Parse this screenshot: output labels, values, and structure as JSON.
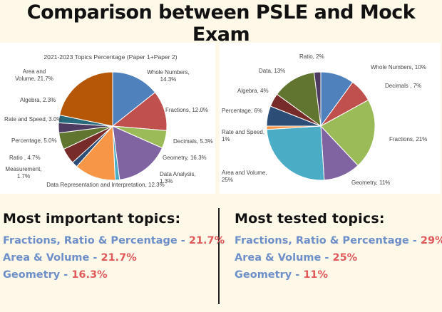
{
  "page": {
    "title": "Comparison between PSLE and Mock Exam"
  },
  "chart_data": [
    {
      "type": "pie",
      "title": "2021-2023 Topics Percentage (Paper 1+Paper 2)",
      "slices": [
        {
          "label": [
            "Whole Numbers,",
            "14.3%"
          ],
          "value": 14.3,
          "color": "#4f81bd"
        },
        {
          "label": [
            "Fractions, 12.0%"
          ],
          "value": 12.0,
          "color": "#c0504d"
        },
        {
          "label": [
            "Decimals, 5.3%"
          ],
          "value": 5.3,
          "color": "#9bbb59"
        },
        {
          "label": [
            "Geometry, 16.3%"
          ],
          "value": 16.3,
          "color": "#8064a2"
        },
        {
          "label": [
            "Data Analysis,",
            "1.3%"
          ],
          "value": 1.3,
          "color": "#4bacc6"
        },
        {
          "label": [
            "Data Representation and Interpretation, 12.3%"
          ],
          "value": 12.3,
          "color": "#f79646"
        },
        {
          "label": [
            "Measurement,",
            "1.7%"
          ],
          "value": 1.7,
          "color": "#2c4d75"
        },
        {
          "label": [
            "Ratio , 4.7%"
          ],
          "value": 4.7,
          "color": "#772c2a"
        },
        {
          "label": [
            "Percentage, 5.0%"
          ],
          "value": 5.0,
          "color": "#5f7530"
        },
        {
          "label": [
            "Rate and Speed, 3.0%"
          ],
          "value": 3.0,
          "color": "#4d3b62"
        },
        {
          "label": [
            "Algebra, 2.3%"
          ],
          "value": 2.3,
          "color": "#276a7c"
        },
        {
          "label": [
            "Area and",
            "Volume, 21.7%"
          ],
          "value": 21.7,
          "color": "#b65708"
        }
      ]
    },
    {
      "type": "pie",
      "title": "",
      "slices": [
        {
          "label": [
            "Whole Numbers, 10%"
          ],
          "value": 10,
          "color": "#4f81bd"
        },
        {
          "label": [
            "Decimals , 7%"
          ],
          "value": 7,
          "color": "#c0504d"
        },
        {
          "label": [
            "Fractions, 21%"
          ],
          "value": 21,
          "color": "#9bbb59"
        },
        {
          "label": [
            "Geometry, 11%"
          ],
          "value": 11,
          "color": "#8064a2"
        },
        {
          "label": [
            "Area and Volume,",
            "25%"
          ],
          "value": 25,
          "color": "#4bacc6"
        },
        {
          "label": [
            "Rate and Speed,",
            "1%"
          ],
          "value": 1,
          "color": "#f79646"
        },
        {
          "label": [
            "Percentage, 6%"
          ],
          "value": 6,
          "color": "#2c4d75"
        },
        {
          "label": [
            "Algebra, 4%"
          ],
          "value": 4,
          "color": "#772c2a"
        },
        {
          "label": [
            "Data, 13%"
          ],
          "value": 13,
          "color": "#5f7530"
        },
        {
          "label": [
            "Ratio, 2%"
          ],
          "value": 2,
          "color": "#4d3b62"
        }
      ]
    }
  ],
  "summary": {
    "left": {
      "heading": "Most important topics:",
      "items": [
        {
          "name": "Fractions, Ratio & Percentage",
          "value": "21.7%"
        },
        {
          "name": "Area & Volume",
          "value": "21.7%"
        },
        {
          "name": "Geometry",
          "value": "16.3%"
        }
      ]
    },
    "right": {
      "heading": "Most tested topics:",
      "items": [
        {
          "name": "Fractions, Ratio & Percentage",
          "value": "29%"
        },
        {
          "name": "Area & Volume",
          "value": "25%"
        },
        {
          "name": "Geometry",
          "value": "11%"
        }
      ]
    }
  }
}
